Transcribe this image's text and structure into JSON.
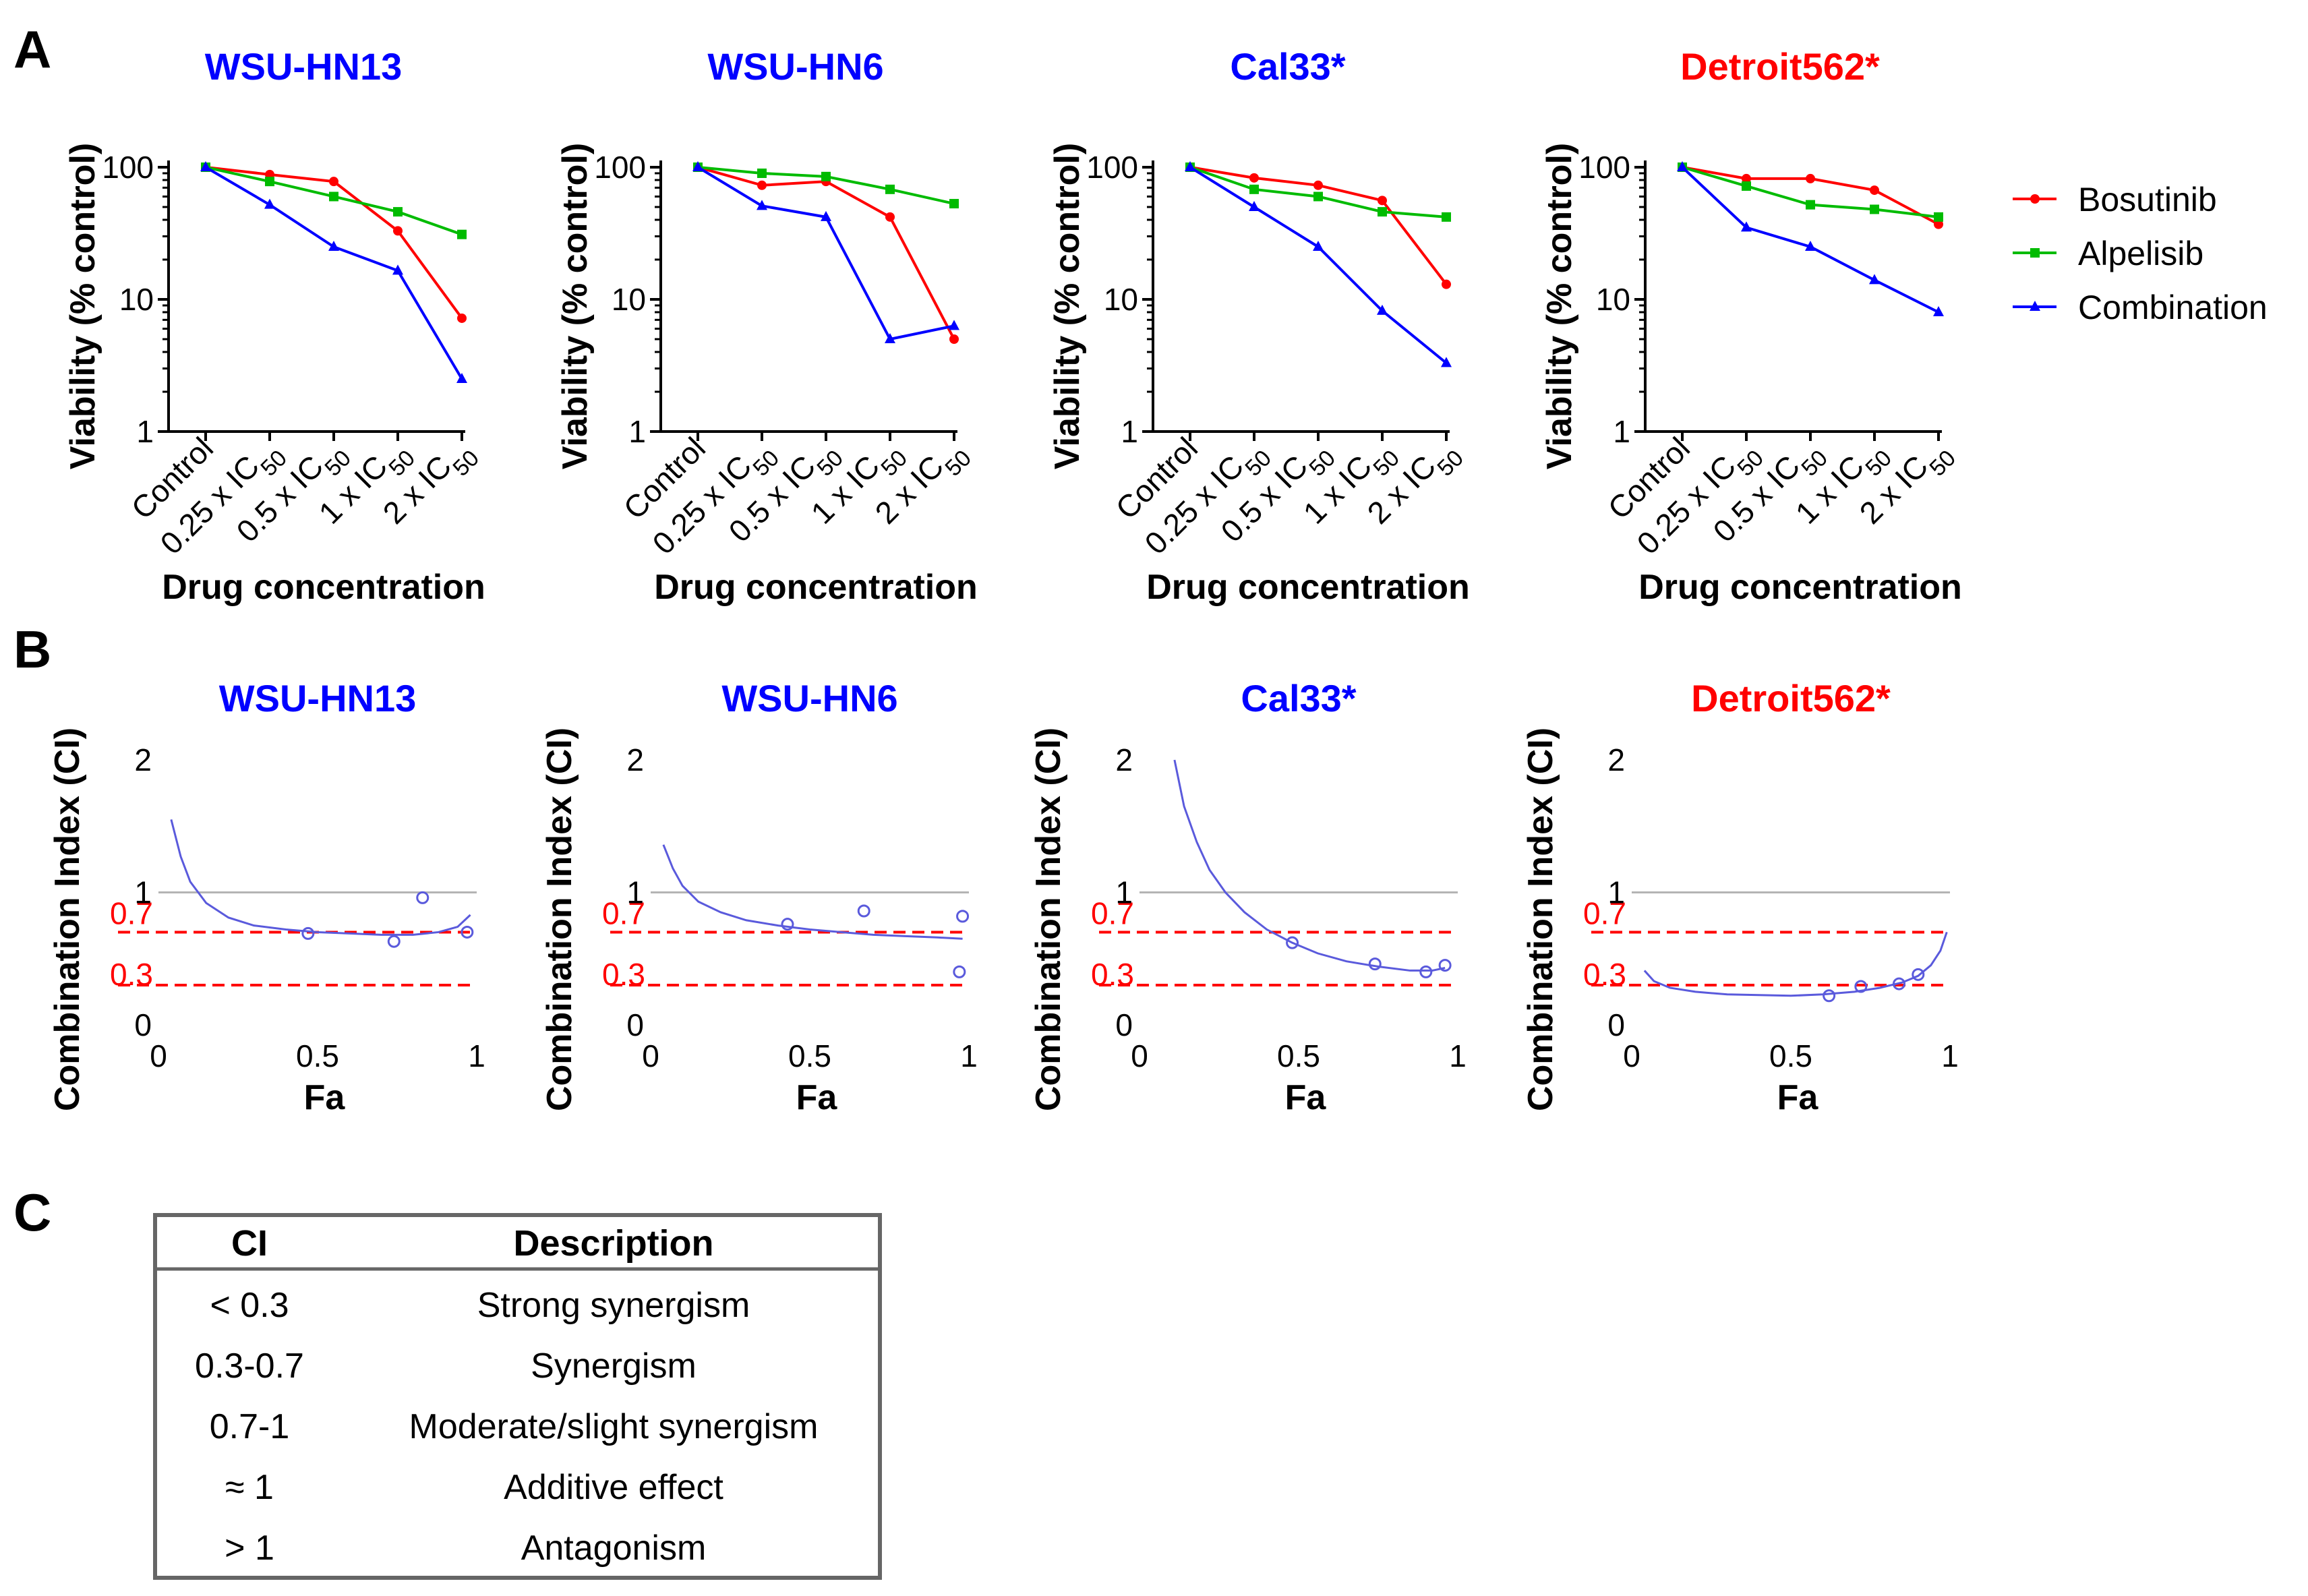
{
  "colors": {
    "bosutinib": "#ff0000",
    "alpelisib": "#00bb00",
    "combination": "#0000ff",
    "title_blue": "#0000ff",
    "title_red": "#ff0000",
    "ci_curve": "#5a5adc",
    "ref_line": "#ff0000",
    "grey_line": "#b4b4b4"
  },
  "panels": {
    "a": "A",
    "b": "B",
    "c": "C"
  },
  "legend": [
    {
      "series": "Bosutinib",
      "marker": "circle",
      "color": "#ff0000"
    },
    {
      "series": "Alpelisib",
      "marker": "square",
      "color": "#00bb00"
    },
    {
      "series": "Combination",
      "marker": "triangle",
      "color": "#0000ff"
    }
  ],
  "chart_data": [
    {
      "type": "line",
      "panel": "A",
      "title": "WSU-HN13",
      "title_color": "#0000ff",
      "xlabel": "Drug concentration",
      "ylabel": "Viability (% control)",
      "yscale": "log",
      "ylim": [
        1,
        100
      ],
      "yticks": [
        "1",
        "10",
        "100"
      ],
      "categories": [
        "Control",
        "0.25 x IC50",
        "0.5 x IC50",
        "1 x IC50",
        "2 x IC50"
      ],
      "series": [
        {
          "name": "Bosutinib",
          "values": [
            100,
            88,
            78,
            33,
            7.2
          ]
        },
        {
          "name": "Alpelisib",
          "values": [
            100,
            78,
            60,
            46,
            31
          ]
        },
        {
          "name": "Combination",
          "values": [
            100,
            52,
            25,
            16.5,
            2.5
          ]
        }
      ]
    },
    {
      "type": "line",
      "panel": "A",
      "title": "WSU-HN6",
      "title_color": "#0000ff",
      "xlabel": "Drug concentration",
      "ylabel": "Viability (% control)",
      "yscale": "log",
      "ylim": [
        1,
        100
      ],
      "yticks": [
        "1",
        "10",
        "100"
      ],
      "categories": [
        "Control",
        "0.25 x IC50",
        "0.5 x IC50",
        "1 x IC50",
        "2 x IC50"
      ],
      "series": [
        {
          "name": "Bosutinib",
          "values": [
            100,
            73,
            78,
            42,
            5
          ]
        },
        {
          "name": "Alpelisib",
          "values": [
            100,
            90,
            85,
            68,
            53
          ]
        },
        {
          "name": "Combination",
          "values": [
            100,
            51,
            42,
            5,
            6.3
          ]
        }
      ]
    },
    {
      "type": "line",
      "panel": "A",
      "title": "Cal33*",
      "title_color": "#0000ff",
      "xlabel": "Drug concentration",
      "ylabel": "Viability (% control)",
      "yscale": "log",
      "ylim": [
        1,
        100
      ],
      "yticks": [
        "1",
        "10",
        "100"
      ],
      "categories": [
        "Control",
        "0.25 x IC50",
        "0.5 x IC50",
        "1 x IC50",
        "2 x IC50"
      ],
      "series": [
        {
          "name": "Bosutinib",
          "values": [
            100,
            83,
            73,
            56,
            13
          ]
        },
        {
          "name": "Alpelisib",
          "values": [
            100,
            68,
            60,
            46,
            42
          ]
        },
        {
          "name": "Combination",
          "values": [
            100,
            50,
            25,
            8.2,
            3.3
          ]
        }
      ]
    },
    {
      "type": "line",
      "panel": "A",
      "title": "Detroit562*",
      "title_color": "#ff0000",
      "xlabel": "Drug concentration",
      "ylabel": "Viability (% control)",
      "yscale": "log",
      "ylim": [
        1,
        100
      ],
      "yticks": [
        "1",
        "10",
        "100"
      ],
      "categories": [
        "Control",
        "0.25 x IC50",
        "0.5 x IC50",
        "1 x IC50",
        "2 x IC50"
      ],
      "series": [
        {
          "name": "Bosutinib",
          "values": [
            100,
            82,
            82,
            67,
            37
          ]
        },
        {
          "name": "Alpelisib",
          "values": [
            100,
            72,
            52,
            48,
            42
          ]
        },
        {
          "name": "Combination",
          "values": [
            100,
            35,
            25,
            14,
            8
          ]
        }
      ]
    },
    {
      "type": "scatter",
      "panel": "B",
      "title": "WSU-HN13",
      "title_color": "#0000ff",
      "xlabel": "Fa",
      "ylabel": "Combination Index (CI)",
      "xlim": [
        0,
        1
      ],
      "ylim": [
        0,
        2
      ],
      "xticks": [
        "0",
        "0.5",
        "1"
      ],
      "yticks": [
        "0",
        "1",
        "2"
      ],
      "ref_lines": [
        "0.3",
        "0.7"
      ],
      "points": [
        [
          0.47,
          0.69
        ],
        [
          0.74,
          0.63
        ],
        [
          0.83,
          0.96
        ],
        [
          0.97,
          0.7
        ]
      ],
      "curve": [
        [
          0.04,
          1.55
        ],
        [
          0.07,
          1.27
        ],
        [
          0.1,
          1.08
        ],
        [
          0.15,
          0.92
        ],
        [
          0.22,
          0.81
        ],
        [
          0.3,
          0.75
        ],
        [
          0.4,
          0.72
        ],
        [
          0.5,
          0.7
        ],
        [
          0.6,
          0.69
        ],
        [
          0.7,
          0.68
        ],
        [
          0.8,
          0.68
        ],
        [
          0.88,
          0.7
        ],
        [
          0.94,
          0.74
        ],
        [
          0.98,
          0.83
        ]
      ]
    },
    {
      "type": "scatter",
      "panel": "B",
      "title": "WSU-HN6",
      "title_color": "#0000ff",
      "xlabel": "Fa",
      "ylabel": "Combination Index (CI)",
      "xlim": [
        0,
        1
      ],
      "ylim": [
        0,
        2
      ],
      "xticks": [
        "0",
        "0.5",
        "1"
      ],
      "yticks": [
        "0",
        "1",
        "2"
      ],
      "ref_lines": [
        "0.3",
        "0.7"
      ],
      "points": [
        [
          0.43,
          0.76
        ],
        [
          0.67,
          0.86
        ],
        [
          0.97,
          0.4
        ],
        [
          0.98,
          0.82
        ]
      ],
      "curve": [
        [
          0.04,
          1.36
        ],
        [
          0.07,
          1.18
        ],
        [
          0.1,
          1.05
        ],
        [
          0.15,
          0.93
        ],
        [
          0.22,
          0.85
        ],
        [
          0.3,
          0.79
        ],
        [
          0.4,
          0.75
        ],
        [
          0.5,
          0.72
        ],
        [
          0.6,
          0.7
        ],
        [
          0.7,
          0.68
        ],
        [
          0.8,
          0.67
        ],
        [
          0.9,
          0.66
        ],
        [
          0.98,
          0.65
        ]
      ]
    },
    {
      "type": "scatter",
      "panel": "B",
      "title": "Cal33*",
      "title_color": "#0000ff",
      "xlabel": "Fa",
      "ylabel": "Combination Index (CI)",
      "xlim": [
        0,
        1
      ],
      "ylim": [
        0,
        2
      ],
      "xticks": [
        "0",
        "0.5",
        "1"
      ],
      "yticks": [
        "0",
        "1",
        "2"
      ],
      "ref_lines": [
        "0.3",
        "0.7"
      ],
      "points": [
        [
          0.48,
          0.62
        ],
        [
          0.74,
          0.46
        ],
        [
          0.9,
          0.4
        ],
        [
          0.96,
          0.45
        ]
      ],
      "curve": [
        [
          0.11,
          2.0
        ],
        [
          0.14,
          1.65
        ],
        [
          0.18,
          1.38
        ],
        [
          0.22,
          1.17
        ],
        [
          0.27,
          1.0
        ],
        [
          0.33,
          0.85
        ],
        [
          0.4,
          0.72
        ],
        [
          0.48,
          0.62
        ],
        [
          0.56,
          0.54
        ],
        [
          0.65,
          0.48
        ],
        [
          0.75,
          0.44
        ],
        [
          0.85,
          0.41
        ],
        [
          0.92,
          0.41
        ],
        [
          0.96,
          0.43
        ]
      ]
    },
    {
      "type": "scatter",
      "panel": "B",
      "title": "Detroit562*",
      "title_color": "#ff0000",
      "xlabel": "Fa",
      "ylabel": "Combination Index (CI)",
      "xlim": [
        0,
        1
      ],
      "ylim": [
        0,
        2
      ],
      "xticks": [
        "0",
        "0.5",
        "1"
      ],
      "yticks": [
        "0",
        "1",
        "2"
      ],
      "ref_lines": [
        "0.3",
        "0.7"
      ],
      "points": [
        [
          0.62,
          0.22
        ],
        [
          0.72,
          0.29
        ],
        [
          0.84,
          0.31
        ],
        [
          0.9,
          0.38
        ]
      ],
      "curve": [
        [
          0.04,
          0.41
        ],
        [
          0.07,
          0.33
        ],
        [
          0.12,
          0.28
        ],
        [
          0.2,
          0.25
        ],
        [
          0.3,
          0.23
        ],
        [
          0.4,
          0.225
        ],
        [
          0.5,
          0.22
        ],
        [
          0.6,
          0.23
        ],
        [
          0.7,
          0.25
        ],
        [
          0.78,
          0.28
        ],
        [
          0.85,
          0.32
        ],
        [
          0.9,
          0.37
        ],
        [
          0.94,
          0.45
        ],
        [
          0.97,
          0.56
        ],
        [
          0.99,
          0.7
        ]
      ]
    }
  ],
  "table": {
    "headers": [
      "CI",
      "Description"
    ],
    "rows": [
      [
        "< 0.3",
        "Strong synergism"
      ],
      [
        "0.3-0.7",
        "Synergism"
      ],
      [
        "0.7-1",
        "Moderate/slight synergism"
      ],
      [
        "≈ 1",
        "Additive effect"
      ],
      [
        "> 1",
        "Antagonism"
      ]
    ]
  }
}
